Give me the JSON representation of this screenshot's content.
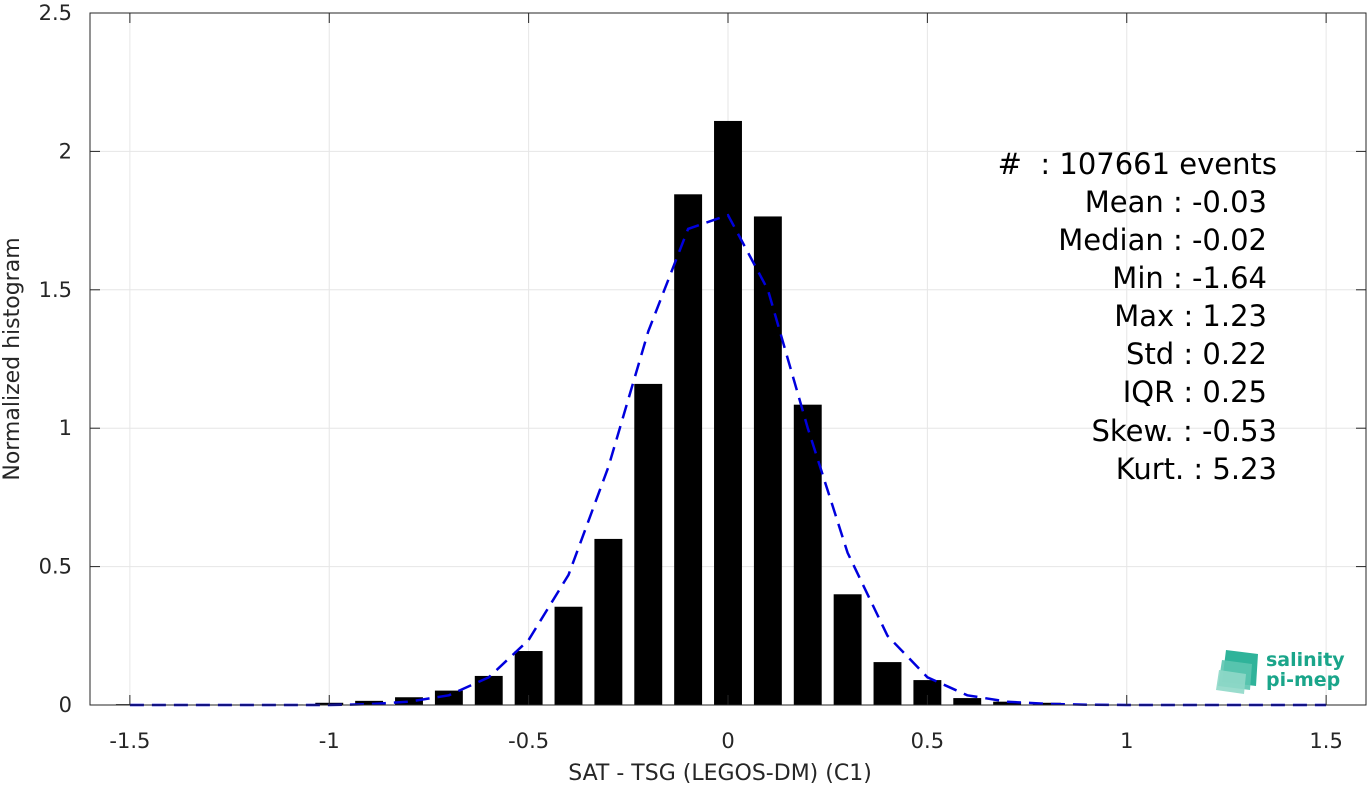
{
  "chart_data": {
    "type": "bar",
    "title": "",
    "xlabel": "SAT - TSG (LEGOS-DM) (C1)",
    "ylabel": "Normalized histogram",
    "xlim": [
      -1.6,
      1.6
    ],
    "ylim": [
      0,
      2.5
    ],
    "xticks": [
      -1.5,
      -1,
      -0.5,
      0,
      0.5,
      1,
      1.5
    ],
    "xtick_labels": [
      "-1.5",
      "-1",
      "-0.5",
      "0",
      "0.5",
      "1",
      "1.5"
    ],
    "yticks": [
      0,
      0.5,
      1,
      1.5,
      2,
      2.5
    ],
    "ytick_labels": [
      "0",
      "0.5",
      "1",
      "1.5",
      "2",
      "2.5"
    ],
    "grid": true,
    "bar_width": 0.07,
    "bar_color": "#000000",
    "bars": {
      "x": [
        -1.5,
        -1.4,
        -1.3,
        -1.2,
        -1.1,
        -1.0,
        -0.9,
        -0.8,
        -0.7,
        -0.6,
        -0.5,
        -0.4,
        -0.3,
        -0.2,
        -0.1,
        0.0,
        0.1,
        0.2,
        0.3,
        0.4,
        0.5,
        0.6,
        0.7,
        0.8,
        0.9,
        1.0,
        1.1,
        1.2,
        1.3,
        1.4,
        1.5
      ],
      "values": [
        0.003,
        0.001,
        0.001,
        0.001,
        0.002,
        0.008,
        0.015,
        0.028,
        0.052,
        0.105,
        0.195,
        0.355,
        0.6,
        1.16,
        1.845,
        2.11,
        1.765,
        1.085,
        0.4,
        0.155,
        0.09,
        0.025,
        0.012,
        0.008,
        0.002,
        0.001,
        0.001,
        0.001,
        0.001,
        0.001,
        0.001
      ]
    },
    "fit_curve": {
      "style": "dashed",
      "color": "#0000dd",
      "x": [
        -1.5,
        -1.4,
        -1.3,
        -1.2,
        -1.1,
        -1.0,
        -0.9,
        -0.8,
        -0.7,
        -0.6,
        -0.5,
        -0.4,
        -0.3,
        -0.2,
        -0.1,
        0.0,
        0.1,
        0.2,
        0.3,
        0.4,
        0.5,
        0.6,
        0.7,
        0.8,
        0.9,
        1.0,
        1.1,
        1.2,
        1.3,
        1.4,
        1.5
      ],
      "y": [
        0.0,
        0.0,
        0.0,
        0.0,
        0.0,
        0.0,
        0.003,
        0.012,
        0.035,
        0.1,
        0.235,
        0.47,
        0.86,
        1.35,
        1.72,
        1.77,
        1.5,
        1.0,
        0.55,
        0.25,
        0.1,
        0.035,
        0.012,
        0.004,
        0.001,
        0.0,
        0.0,
        0.0,
        0.0,
        0.0,
        0.0
      ]
    }
  },
  "stats": [
    {
      "label": "#  : 107661 events"
    },
    {
      "label": "Mean : -0.03"
    },
    {
      "label": "Median : -0.02"
    },
    {
      "label": "Min : -1.64"
    },
    {
      "label": "Max : 1.23"
    },
    {
      "label": "Std : 0.22"
    },
    {
      "label": "IQR : 0.25"
    },
    {
      "label": "Skew. : -0.53"
    },
    {
      "label": "Kurt. : 5.23"
    }
  ],
  "logo": {
    "line1": "salinity",
    "line2": "pi-mep",
    "color": "#1aa58a"
  }
}
